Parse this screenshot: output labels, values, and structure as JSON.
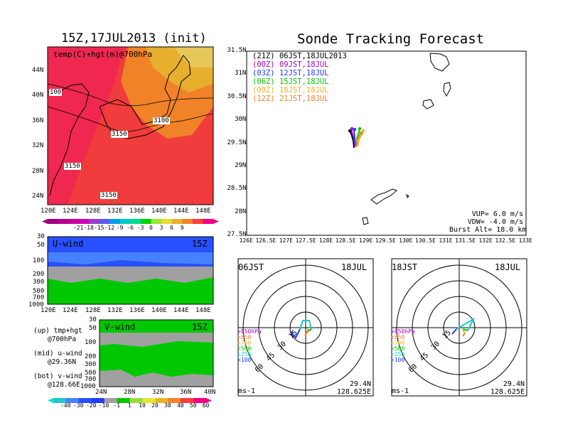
{
  "left": {
    "title": "15Z,17JUL2013 (init)",
    "map_label": "temp(C)+hgt(m)@700hPa",
    "lat_ticks": [
      "44N",
      "40N",
      "36N",
      "32N",
      "28N",
      "24N"
    ],
    "lon_ticks": [
      "120E",
      "124E",
      "128E",
      "132E",
      "136E",
      "140E",
      "144E",
      "148E"
    ],
    "contour_labels": [
      "100",
      "3100",
      "3150",
      "3150",
      "3150"
    ],
    "temp_scale": [
      "-21",
      "-18",
      "-15",
      "-12",
      "-9",
      "-6",
      "-3",
      "0",
      "3",
      "6",
      "9"
    ],
    "uwind": {
      "label": "U-wind",
      "time": "15Z",
      "p_ticks": [
        "30",
        "50",
        "100",
        "200",
        "300",
        "500",
        "700",
        "1000"
      ],
      "lon_ticks": [
        "120E",
        "124E",
        "128E",
        "132E",
        "136E",
        "140E",
        "144E",
        "148E"
      ]
    },
    "vwind": {
      "label": "V-wind",
      "time": "15Z",
      "p_ticks": [
        "30",
        "50",
        "100",
        "200",
        "300",
        "500",
        "700",
        "1000"
      ],
      "lat_ticks": [
        "24N",
        "28N",
        "32N",
        "36N",
        "40N"
      ]
    },
    "notes": [
      {
        "a": "(up) tmp+hgt",
        "b": "@700hPa"
      },
      {
        "a": "(mid) u-wind",
        "b": "@29.36N"
      },
      {
        "a": "(bot) v-wind",
        "b": "@128.66E"
      }
    ],
    "wind_scale": [
      "-40",
      "-30",
      "-20",
      "-10",
      "-1",
      "1",
      "10",
      "20",
      "30",
      "40",
      "50",
      "60"
    ],
    "colors": {
      "temp": [
        "#a0007c",
        "#b4008c",
        "#c800a0",
        "#d000b4",
        "#9a3cc8",
        "#5a5af0",
        "#00a0e6",
        "#00c8c8",
        "#00dc8c",
        "#00d200",
        "#a0e632",
        "#e6dc32",
        "#e6af2d",
        "#f08228",
        "#fa3c3c",
        "#f00082"
      ],
      "wind": [
        "#1ec8c8",
        "#4682ff",
        "#2850ff",
        "#1e3cff",
        "#a0a0a0",
        "#00c800",
        "#96dc3c",
        "#e6e632",
        "#e6b42d",
        "#f08228",
        "#fa3c3c",
        "#f00082"
      ]
    }
  },
  "main": {
    "title": "Sonde Tracking Forecast",
    "lat_ticks": [
      "31.5N",
      "31N",
      "30.5N",
      "30N",
      "29.5N",
      "29N",
      "28.5N",
      "28N",
      "27.5N"
    ],
    "lon_ticks": [
      "126E",
      "126.5E",
      "127E",
      "127.5E",
      "128E",
      "128.5E",
      "129E",
      "129.5E",
      "130E",
      "130.5E",
      "131E",
      "131.5E",
      "132E",
      "132.5E",
      "133E"
    ],
    "legend": [
      {
        "utc": "(21Z)",
        "jst": "06JST,18JUL2013",
        "color": "#000000"
      },
      {
        "utc": "(00Z)",
        "jst": "09JST,18JUL",
        "color": "#a000c8"
      },
      {
        "utc": "(03Z)",
        "jst": "12JST,18JUL",
        "color": "#1e3cff"
      },
      {
        "utc": "(06Z)",
        "jst": "15JST,18JUL",
        "color": "#00c800"
      },
      {
        "utc": "(09Z)",
        "jst": "18JST,18JUL",
        "color": "#e6b42d"
      },
      {
        "utc": "(12Z)",
        "jst": "21JST,18JUL",
        "color": "#f08228"
      }
    ],
    "params": [
      "VUP= 6.0 m/s",
      "VDW= -4.0 m/s",
      "Burst Alt= 18.0 km"
    ]
  },
  "hodographs": [
    {
      "time_label": "06JST",
      "date_label": "18JUL",
      "ring_labels": [
        "15",
        "30",
        "45",
        "60"
      ],
      "levels": [
        ">850hPa",
        "<850",
        "<700",
        "<500",
        "<250",
        "<100"
      ],
      "level_colors": [
        "#a000c8",
        "#f08228",
        "#e6b42d",
        "#00c800",
        "#1ec8c8",
        "#1e3cff"
      ],
      "unit": "ms-1",
      "lat": "29.4N",
      "lon": "128.625E"
    },
    {
      "time_label": "18JST",
      "date_label": "18JUL",
      "ring_labels": [
        "15",
        "30",
        "45",
        "60"
      ],
      "levels": [
        ">850hPa",
        "<850",
        "<700",
        "<500",
        "<250",
        "<100"
      ],
      "level_colors": [
        "#a000c8",
        "#f08228",
        "#e6b42d",
        "#00c800",
        "#1ec8c8",
        "#1e3cff"
      ],
      "unit": "ms-1",
      "lat": "29.4N",
      "lon": "128.625E"
    }
  ]
}
